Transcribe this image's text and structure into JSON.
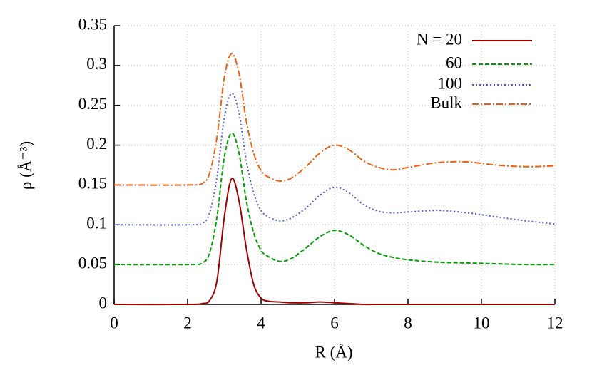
{
  "chart_data": {
    "type": "line",
    "xlabel": "R (Å)",
    "ylabel": "ρ (Å⁻³)",
    "x": [
      0,
      2,
      2.4,
      2.6,
      2.8,
      3.0,
      3.2,
      3.4,
      3.6,
      3.8,
      4.0,
      4.2,
      4.5,
      4.8,
      5.2,
      5.6,
      6.0,
      6.4,
      6.8,
      7.2,
      7.6,
      8.0,
      8.8,
      9.6,
      10.4,
      11.2,
      12
    ],
    "series": [
      {
        "name": "N = 20",
        "color": "#a00000",
        "dash": "solid",
        "values": [
          0,
          0,
          0.001,
          0.005,
          0.03,
          0.11,
          0.158,
          0.13,
          0.07,
          0.025,
          0.008,
          0.004,
          0.003,
          0.002,
          0.002,
          0.003,
          0.002,
          0.001,
          0,
          0,
          0,
          0,
          0,
          0,
          0,
          0,
          0
        ]
      },
      {
        "name": "60",
        "color": "#00a000",
        "dash": "dashed",
        "values": [
          0.05,
          0.05,
          0.052,
          0.065,
          0.11,
          0.185,
          0.215,
          0.19,
          0.13,
          0.09,
          0.068,
          0.06,
          0.054,
          0.057,
          0.07,
          0.085,
          0.093,
          0.087,
          0.074,
          0.064,
          0.059,
          0.056,
          0.053,
          0.052,
          0.051,
          0.05,
          0.05
        ]
      },
      {
        "name": "100",
        "color": "#5060d0",
        "dash": "dotted",
        "values": [
          0.1,
          0.1,
          0.102,
          0.115,
          0.16,
          0.235,
          0.265,
          0.24,
          0.18,
          0.14,
          0.118,
          0.11,
          0.105,
          0.108,
          0.12,
          0.137,
          0.147,
          0.14,
          0.125,
          0.117,
          0.115,
          0.116,
          0.118,
          0.115,
          0.11,
          0.105,
          0.101
        ]
      },
      {
        "name": "Bulk",
        "color": "#f06010",
        "dash": "dashdot",
        "values": [
          0.15,
          0.15,
          0.152,
          0.165,
          0.21,
          0.285,
          0.315,
          0.29,
          0.23,
          0.19,
          0.168,
          0.16,
          0.155,
          0.158,
          0.172,
          0.19,
          0.2,
          0.194,
          0.18,
          0.172,
          0.169,
          0.172,
          0.178,
          0.179,
          0.175,
          0.173,
          0.174
        ]
      }
    ],
    "xlim": [
      0,
      12
    ],
    "xticks": [
      0,
      2,
      4,
      6,
      8,
      10,
      12
    ],
    "ylim": [
      0,
      0.35
    ],
    "yticks": [
      0,
      0.05,
      0.1,
      0.15,
      0.2,
      0.25,
      0.3,
      0.35
    ],
    "grid": true,
    "legend": "upper right"
  }
}
